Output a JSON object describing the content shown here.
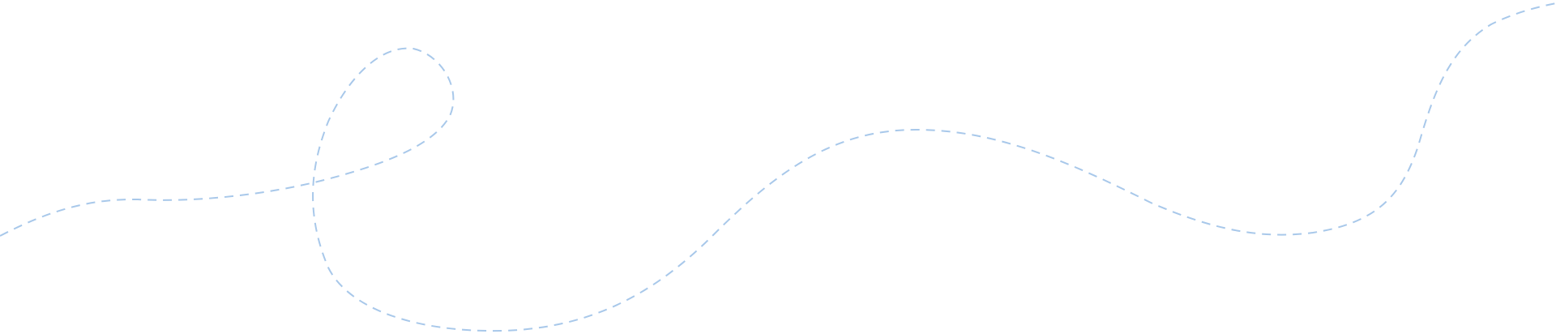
{
  "decoration": {
    "description_icon": "dashed-wavy-line",
    "stroke_color": "#a8c8ea",
    "background_color": "#ffffff"
  }
}
